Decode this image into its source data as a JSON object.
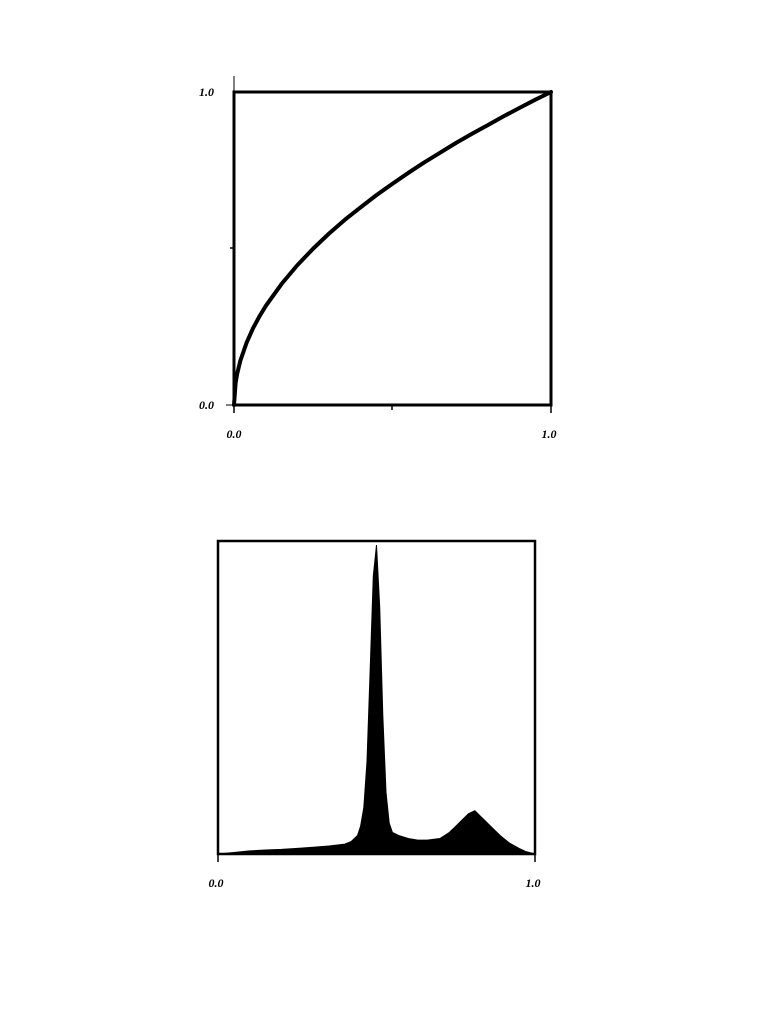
{
  "colors": {
    "ink": "#000000",
    "background": "#ffffff"
  },
  "chart_data": [
    {
      "type": "line",
      "title": "",
      "xlabel": "",
      "ylabel": "",
      "xlim": [
        0.0,
        1.0
      ],
      "ylim": [
        0.0,
        1.0
      ],
      "grid": false,
      "x_tick_labels": [
        "0.0",
        "1.0"
      ],
      "y_tick_labels": [
        "0.0",
        "1.0"
      ],
      "series": [
        {
          "x": [
            0.0,
            0.005,
            0.01,
            0.02,
            0.04,
            0.06,
            0.08,
            0.1,
            0.15,
            0.2,
            0.25,
            0.3,
            0.35,
            0.4,
            0.45,
            0.5,
            0.55,
            0.6,
            0.65,
            0.7,
            0.75,
            0.8,
            0.85,
            0.9,
            0.95,
            1.0
          ],
          "y": [
            0.0,
            0.07,
            0.1,
            0.141,
            0.2,
            0.245,
            0.283,
            0.316,
            0.387,
            0.447,
            0.5,
            0.548,
            0.592,
            0.632,
            0.671,
            0.707,
            0.742,
            0.775,
            0.806,
            0.837,
            0.866,
            0.894,
            0.922,
            0.949,
            0.975,
            1.0
          ]
        }
      ]
    },
    {
      "type": "area",
      "title": "",
      "xlabel": "",
      "ylabel": "",
      "xlim": [
        0.0,
        1.0
      ],
      "ylim": [
        0.0,
        1.0
      ],
      "grid": false,
      "x_tick_labels": [
        "0.0",
        "1.0"
      ],
      "y_tick_labels": [],
      "series": [
        {
          "x": [
            0.0,
            0.05,
            0.1,
            0.15,
            0.2,
            0.25,
            0.3,
            0.35,
            0.4,
            0.42,
            0.44,
            0.45,
            0.46,
            0.47,
            0.48,
            0.49,
            0.5,
            0.51,
            0.52,
            0.53,
            0.54,
            0.55,
            0.57,
            0.6,
            0.63,
            0.66,
            0.7,
            0.73,
            0.75,
            0.77,
            0.79,
            0.81,
            0.83,
            0.86,
            0.89,
            0.92,
            0.95,
            0.97,
            1.0
          ],
          "y": [
            0.0,
            0.005,
            0.01,
            0.013,
            0.015,
            0.018,
            0.022,
            0.026,
            0.032,
            0.04,
            0.06,
            0.09,
            0.15,
            0.3,
            0.6,
            0.9,
            1.0,
            0.8,
            0.45,
            0.2,
            0.1,
            0.07,
            0.06,
            0.05,
            0.045,
            0.045,
            0.05,
            0.07,
            0.09,
            0.11,
            0.13,
            0.14,
            0.12,
            0.09,
            0.06,
            0.035,
            0.018,
            0.008,
            0.0
          ]
        }
      ]
    }
  ]
}
